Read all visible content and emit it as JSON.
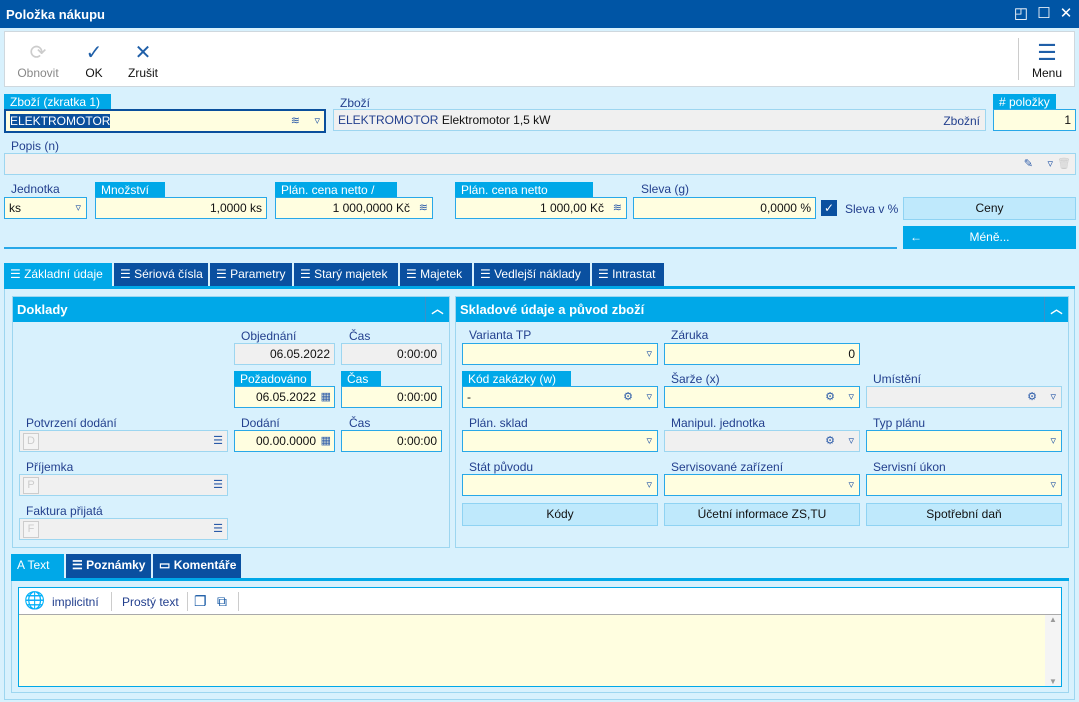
{
  "window": {
    "title": "Položka nákupu"
  },
  "toolbar": {
    "refresh": "Obnovit",
    "ok": "OK",
    "cancel": "Zrušit",
    "menu": "Menu"
  },
  "header": {
    "goods_code_label": "Zboží (zkratka 1)",
    "goods_code_value": "ELEKTROMOTOR",
    "goods_label": "Zboží",
    "goods_code": "ELEKTROMOTOR",
    "goods_name": "Elektromotor 1,5 kW",
    "goods_type": "Zbožní",
    "item_no_label": "# položky",
    "item_no_value": "1",
    "description_label": "Popis (n)",
    "description_value": "",
    "unit_label": "Jednotka",
    "unit_value": "ks",
    "quantity_label": "Množství",
    "quantity_value": "1,0000 ks",
    "unit_price_label": "Plán. cena netto / MJ",
    "unit_price_value": "1 000,0000 Kč",
    "total_price_label": "Plán. cena netto celkem",
    "total_price_value": "1 000,00 Kč",
    "discount_label": "Sleva (g)",
    "discount_value": "0,0000 %",
    "discount_percent_label": "Sleva v %",
    "discount_percent_checked": true,
    "prices_button": "Ceny",
    "less_button": "Méně..."
  },
  "tabs": [
    "Základní údaje",
    "Sériová čísla",
    "Parametry",
    "Starý majetek",
    "Majetek",
    "Vedlejší náklady",
    "Intrastat"
  ],
  "documents": {
    "title": "Doklady",
    "ordered_label": "Objednání",
    "ordered_value": "06.05.2022",
    "ordered_time_label": "Čas",
    "ordered_time_value": "0:00:00",
    "requested_label": "Požadováno",
    "requested_value": "06.05.2022",
    "requested_time_label": "Čas",
    "requested_time_value": "0:00:00",
    "delivery_label": "Dodání",
    "delivery_value": "00.00.0000",
    "delivery_time_label": "Čas",
    "delivery_time_value": "0:00:00",
    "confirm_label": "Potvrzení dodání",
    "confirm_letter": "D",
    "receipt_label": "Příjemka",
    "receipt_letter": "P",
    "invoice_label": "Faktura přijatá",
    "invoice_letter": "F"
  },
  "stock": {
    "title": "Skladové údaje a původ zboží",
    "variant_label": "Varianta TP",
    "variant_value": "",
    "warranty_label": "Záruka",
    "warranty_value": "0",
    "order_code_label": "Kód zakázky (w)",
    "order_code_value": "-",
    "batch_label": "Šarže (x)",
    "batch_value": "",
    "location_label": "Umístění",
    "location_value": "",
    "plan_store_label": "Plán. sklad",
    "handling_unit_label": "Manipul. jednotka",
    "plan_type_label": "Typ plánu",
    "origin_label": "Stát původu",
    "serviced_label": "Servisované zařízení",
    "service_action_label": "Servisní úkon",
    "codes_button": "Kódy",
    "accounting_button": "Účetní informace ZS,TU",
    "excise_button": "Spotřební daň"
  },
  "bottom_tabs": [
    "Text",
    "Poznámky",
    "Komentáře"
  ],
  "editor": {
    "language": "implicitní",
    "format": "Prostý text",
    "content": ""
  },
  "colors": {
    "titlebar": "#0055a5",
    "accent": "#00a8e8",
    "tab_dark": "#0a50a0",
    "input_bg": "#fffee0",
    "background": "#d8f1fd"
  }
}
